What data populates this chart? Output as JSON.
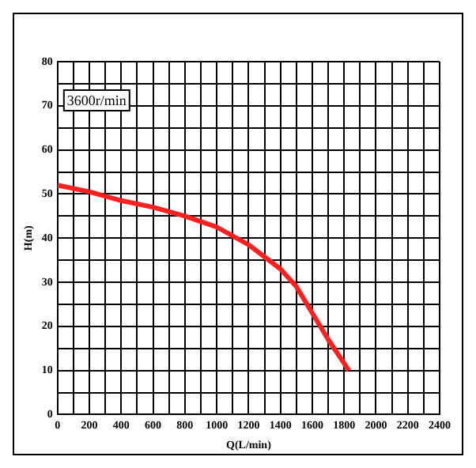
{
  "chart_data": {
    "type": "line",
    "xlabel": "Q(L/min)",
    "ylabel": "H(m)",
    "annotations": [
      "3600r/min"
    ],
    "x": [
      0,
      200,
      400,
      600,
      800,
      1000,
      1200,
      1400,
      1500,
      1600,
      1700,
      1830
    ],
    "series": [
      {
        "color": "#ff2020",
        "values": [
          52,
          50.5,
          48.5,
          47,
          45,
          42.5,
          38.5,
          33,
          29,
          23,
          17,
          10
        ]
      }
    ],
    "xlim": [
      0,
      2400
    ],
    "xticks": [
      0,
      {
        "value": 100,
        "label": null
      },
      200,
      {
        "value": 300,
        "label": null
      },
      400,
      {
        "value": 500,
        "label": null
      },
      600,
      {
        "value": 700,
        "label": null
      },
      800,
      {
        "value": 900,
        "label": null
      },
      1000,
      {
        "value": 1100,
        "label": null
      },
      1200,
      {
        "value": 1300,
        "label": null
      },
      1400,
      {
        "value": 1500,
        "label": null
      },
      1600,
      {
        "value": 1700,
        "label": null
      },
      1800,
      {
        "value": 1900,
        "label": null
      },
      2000,
      {
        "value": 2100,
        "label": null
      },
      2200,
      {
        "value": 2300,
        "label": null
      },
      2400
    ],
    "ylim": [
      0,
      80
    ],
    "yticks": [
      0,
      {
        "value": 5,
        "label": null
      },
      10,
      {
        "value": 15,
        "label": null
      },
      20,
      {
        "value": 25,
        "label": null
      },
      30,
      {
        "value": 35,
        "label": null
      },
      40,
      {
        "value": 45,
        "label": null
      },
      50,
      {
        "value": 55,
        "label": null
      },
      60,
      {
        "value": 65,
        "label": null
      },
      70,
      {
        "value": 75,
        "label": null
      },
      80
    ],
    "grid": true,
    "legend": false,
    "marker": "none",
    "line_style": "solid"
  }
}
